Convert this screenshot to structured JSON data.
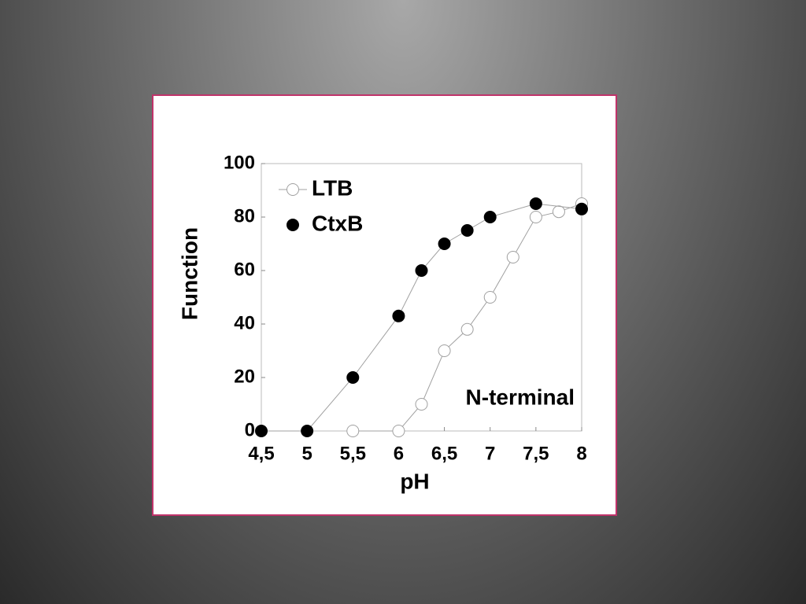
{
  "chart_data": {
    "type": "line",
    "x_label": "pH",
    "y_label": "Function",
    "annotation": "N-terminal",
    "xlim": [
      4.5,
      8
    ],
    "ylim": [
      0,
      100
    ],
    "xticks": [
      {
        "value": 4.5,
        "label": "4,5"
      },
      5,
      {
        "value": 5.5,
        "label": "5,5"
      },
      6,
      {
        "value": 6.5,
        "label": "6,5"
      },
      7,
      {
        "value": 7.5,
        "label": "7,5"
      },
      8
    ],
    "yticks": [
      0,
      20,
      40,
      60,
      80,
      100
    ],
    "legend": "top-left",
    "grid": false,
    "series": [
      {
        "name": "LTB",
        "color": "#a0a0a0",
        "filled": false,
        "x": [
          5.5,
          6,
          6.25,
          6.5,
          6.75,
          7,
          7.25,
          7.5,
          7.75,
          8
        ],
        "values": [
          0,
          0,
          10,
          30,
          38,
          50,
          65,
          80,
          82,
          85
        ]
      },
      {
        "name": "CtxB",
        "color": "#000000",
        "filled": true,
        "x": [
          4.5,
          5,
          5.5,
          6,
          6.25,
          6.5,
          6.75,
          7,
          7.5,
          8
        ],
        "values": [
          0,
          0,
          20,
          43,
          60,
          70,
          75,
          80,
          85,
          83
        ]
      }
    ]
  }
}
